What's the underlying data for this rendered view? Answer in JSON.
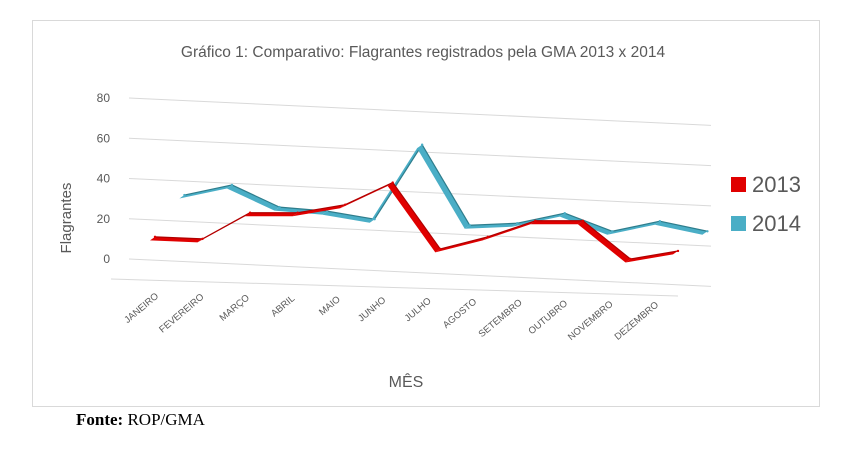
{
  "chart_data": {
    "type": "line",
    "title": "Gráfico 1: Comparativo: Flagrantes registrados pela GMA 2013 x 2014",
    "xlabel": "MÊS",
    "ylabel": "Flagrantes",
    "ylim": [
      0,
      80
    ],
    "yticks": [
      0,
      20,
      40,
      60,
      80
    ],
    "grid": true,
    "legend_position": "right",
    "categories": [
      "JANEIRO",
      "FEVEREIRO",
      "MARÇO",
      "ABRIL",
      "MAIO",
      "JUNHO",
      "JULHO",
      "AGOSTO",
      "SETEMBRO",
      "OUTUBRO",
      "NOVEMBRO",
      "DEZEMBRO"
    ],
    "series": [
      {
        "name": "2013",
        "color": "#e00000",
        "values": [
          11,
          10,
          23,
          23,
          27,
          38,
          5,
          11,
          19,
          19,
          0,
          4
        ]
      },
      {
        "name": "2014",
        "color": "#4aaec6",
        "values": [
          37,
          42,
          31,
          29,
          25,
          62,
          22,
          23,
          28,
          19,
          24,
          19
        ]
      }
    ]
  },
  "source": {
    "label": "Fonte:",
    "text": "ROP/GMA"
  }
}
